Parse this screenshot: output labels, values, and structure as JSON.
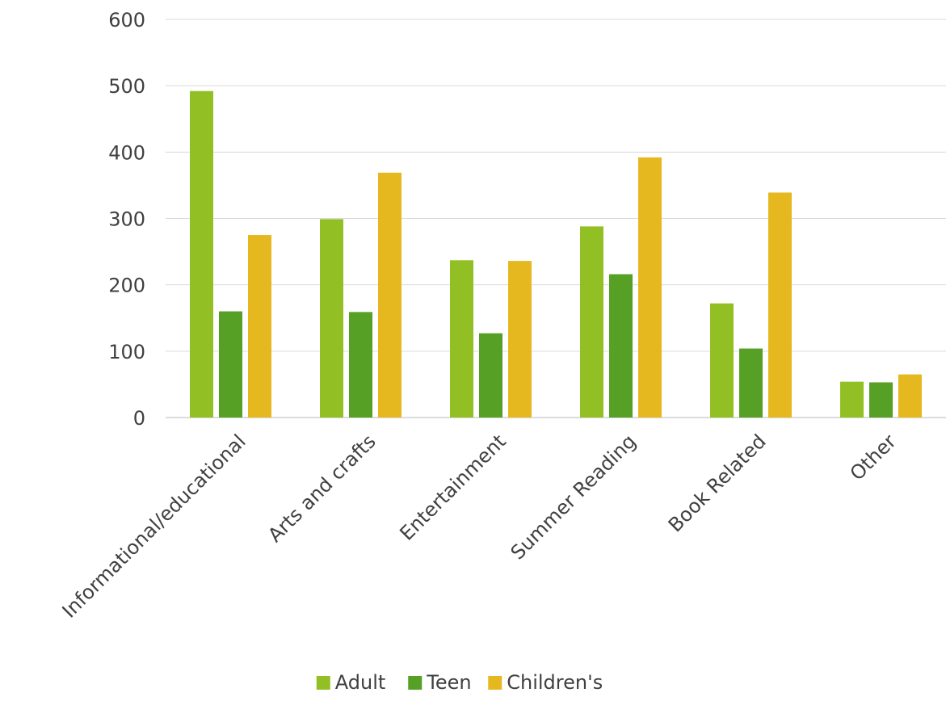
{
  "chart_data": {
    "type": "bar",
    "categories": [
      "Informational/educational",
      "Arts and crafts",
      "Entertainment",
      "Summer Reading",
      "Book Related",
      "Other"
    ],
    "series": [
      {
        "name": "Adult",
        "color": "#92c024",
        "values": [
          492,
          299,
          237,
          288,
          172,
          54
        ]
      },
      {
        "name": "Teen",
        "color": "#56a025",
        "values": [
          160,
          159,
          127,
          216,
          104,
          53
        ]
      },
      {
        "name": "Children's",
        "color": "#e6b820",
        "values": [
          275,
          369,
          236,
          392,
          339,
          65
        ]
      }
    ],
    "ylim": [
      0,
      600
    ],
    "yticks": [
      0,
      100,
      200,
      300,
      400,
      500,
      600
    ],
    "grid": true,
    "legend": "bottom"
  }
}
